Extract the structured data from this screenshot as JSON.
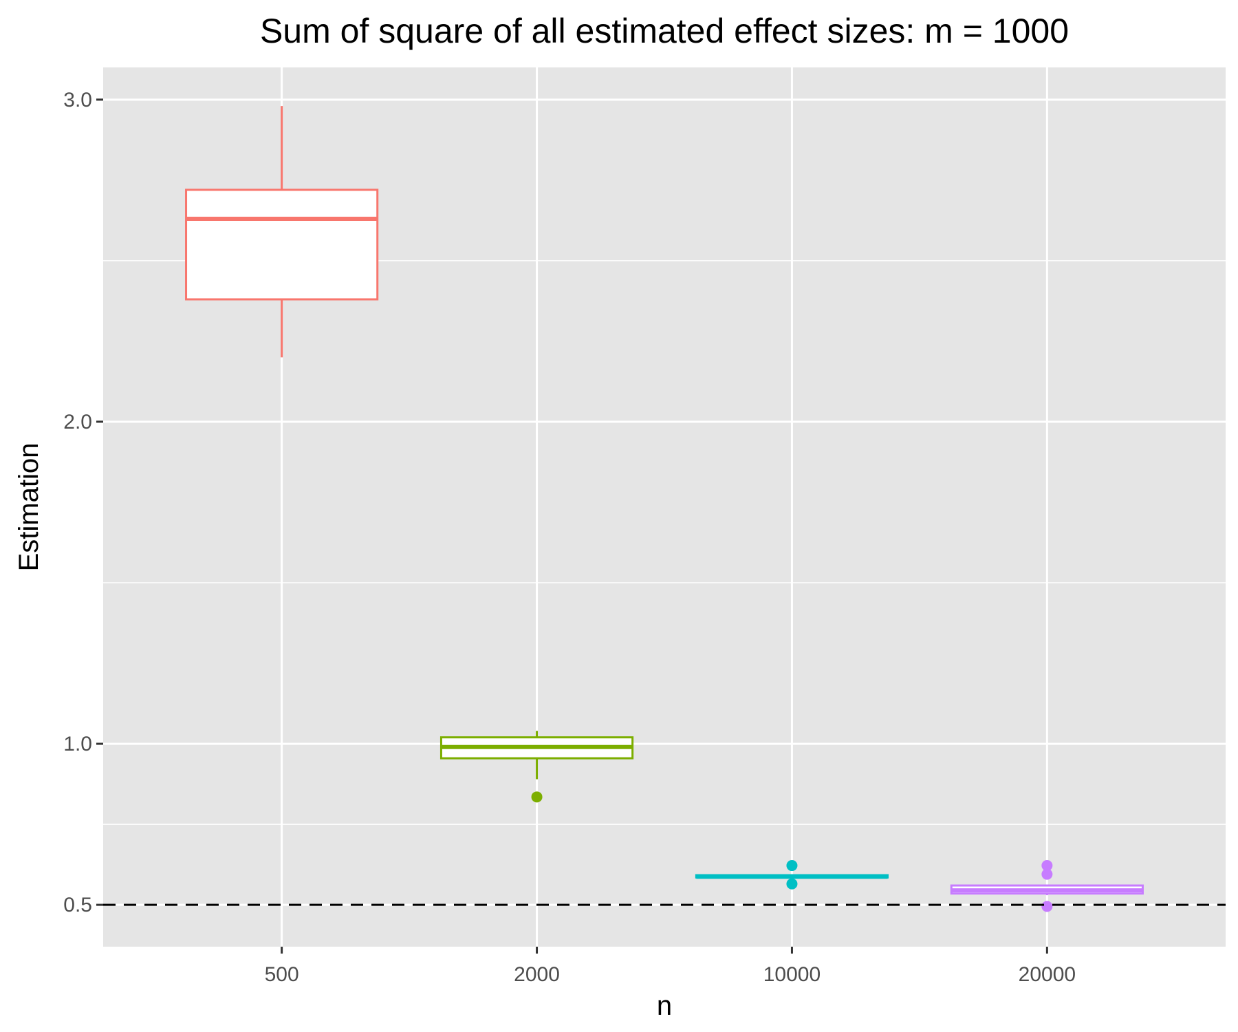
{
  "chart_data": {
    "type": "boxplot",
    "title": "Sum of square of all estimated effect sizes: m = 1000",
    "xlabel": "n",
    "ylabel": "Estimation",
    "categories": [
      "500",
      "2000",
      "10000",
      "20000"
    ],
    "y_ticks": [
      "0.5",
      "1.0",
      "2.0",
      "3.0"
    ],
    "ylim": [
      0.37,
      3.1
    ],
    "grid": true,
    "legend": "none",
    "reference_line": {
      "y": 0.5,
      "style": "dashed",
      "color": "#000000"
    },
    "boxes": [
      {
        "category": "500",
        "color": "#F8766D",
        "whisker_low": 2.2,
        "q1": 2.38,
        "median": 2.63,
        "q3": 2.72,
        "whisker_high": 2.98,
        "outliers": []
      },
      {
        "category": "2000",
        "color": "#7CAE00",
        "whisker_low": 0.89,
        "q1": 0.955,
        "median": 0.99,
        "q3": 1.02,
        "whisker_high": 1.04,
        "outliers": [
          0.835
        ]
      },
      {
        "category": "10000",
        "color": "#00BFC4",
        "whisker_low": 0.585,
        "q1": 0.585,
        "median": 0.587,
        "q3": 0.592,
        "whisker_high": 0.592,
        "outliers": [
          0.622,
          0.565
        ]
      },
      {
        "category": "20000",
        "color": "#C77CFF",
        "whisker_low": 0.53,
        "q1": 0.535,
        "median": 0.545,
        "q3": 0.56,
        "whisker_high": 0.56,
        "outliers": [
          0.622,
          0.595,
          0.495
        ]
      }
    ],
    "panel_background": "#E5E5E5",
    "grid_color": "#FFFFFF"
  }
}
